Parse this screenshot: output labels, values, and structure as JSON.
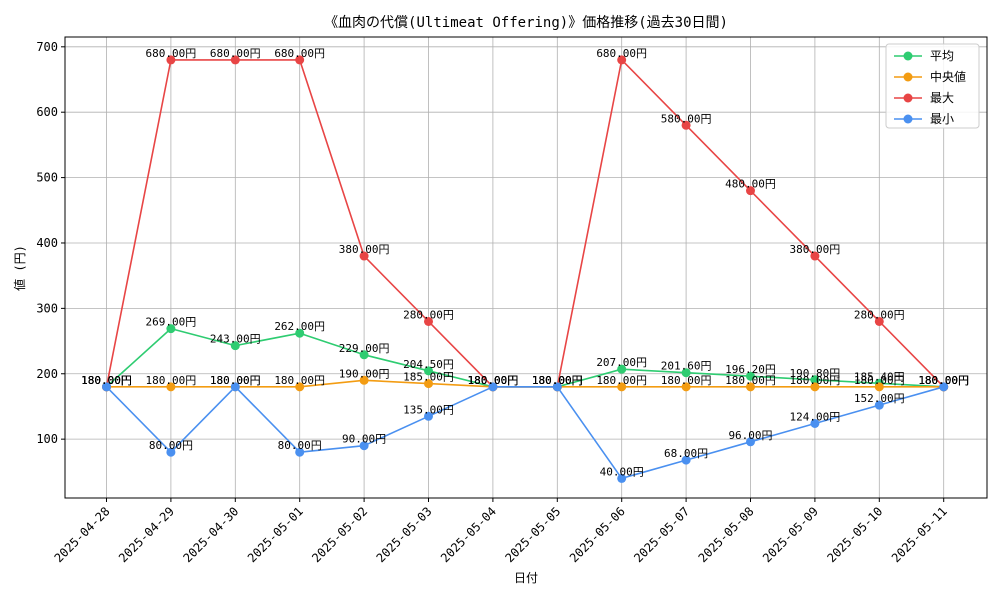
{
  "chart_data": {
    "type": "line",
    "title": "《血肉の代償(Ultimeat Offering)》価格推移(過去30日間)",
    "xlabel": "日付",
    "ylabel": "値 (円)",
    "x": [
      "2025-04-28",
      "2025-04-29",
      "2025-04-30",
      "2025-05-01",
      "2025-05-02",
      "2025-05-03",
      "2025-05-04",
      "2025-05-05",
      "2025-05-06",
      "2025-05-07",
      "2025-05-08",
      "2025-05-09",
      "2025-05-10",
      "2025-05-11"
    ],
    "yticks": [
      100,
      200,
      300,
      400,
      500,
      600,
      700
    ],
    "ylim": [
      10,
      715
    ],
    "grid": true,
    "legend_position": "top-right",
    "series": [
      {
        "name": "平均",
        "color": "#2ecc71",
        "values": [
          180,
          269,
          243,
          262,
          229,
          204.5,
          180,
          180,
          207,
          201.6,
          196.2,
          190.8,
          185.4,
          180
        ],
        "labels": [
          "180.00円",
          "269.00円",
          "243.00円",
          "262.00円",
          "229.00円",
          "204.50円",
          "180.00円",
          "180.00円",
          "207.00円",
          "201.60円",
          "196.20円",
          "190.80円",
          "185.40円",
          "180.00円"
        ]
      },
      {
        "name": " 中央値",
        "color": "#f39c12",
        "values": [
          180,
          180,
          180,
          180,
          190,
          185,
          180,
          180,
          180,
          180,
          180,
          180,
          180,
          180
        ],
        "labels": [
          "180.00円",
          "180.00円",
          "180.00円",
          "180.00円",
          "190.00円",
          "185.00円",
          "180.00円",
          "180.00円",
          "180.00円",
          "180.00円",
          "180.00円",
          "180.00円",
          "180.00円",
          "180.00円"
        ]
      },
      {
        "name": "最大",
        "color": "#e84545",
        "values": [
          180,
          680,
          680,
          680,
          380,
          280,
          180,
          180,
          680,
          580,
          480,
          380,
          280,
          180
        ],
        "labels": [
          "180.00円",
          "680.00円",
          "680.00円",
          "680.00円",
          "380.00円",
          "280.00円",
          "180.00円",
          "180.00円",
          "680.00円",
          "580.00円",
          "480.00円",
          "380.00円",
          "280.00円",
          "180.00円"
        ]
      },
      {
        "name": "最小",
        "color": "#4a90f0",
        "values": [
          180,
          80,
          180,
          80,
          90,
          135,
          180,
          180,
          40,
          68,
          96,
          124,
          152,
          180
        ],
        "labels": [
          "180.00円",
          "80.00円",
          "180.00円",
          "80.00円",
          "90.00円",
          "135.00円",
          "180.00円",
          "180.00円",
          "40.00円",
          "68.00円",
          "96.00円",
          "124.00円",
          "152.00円",
          "180.00円"
        ]
      }
    ]
  }
}
